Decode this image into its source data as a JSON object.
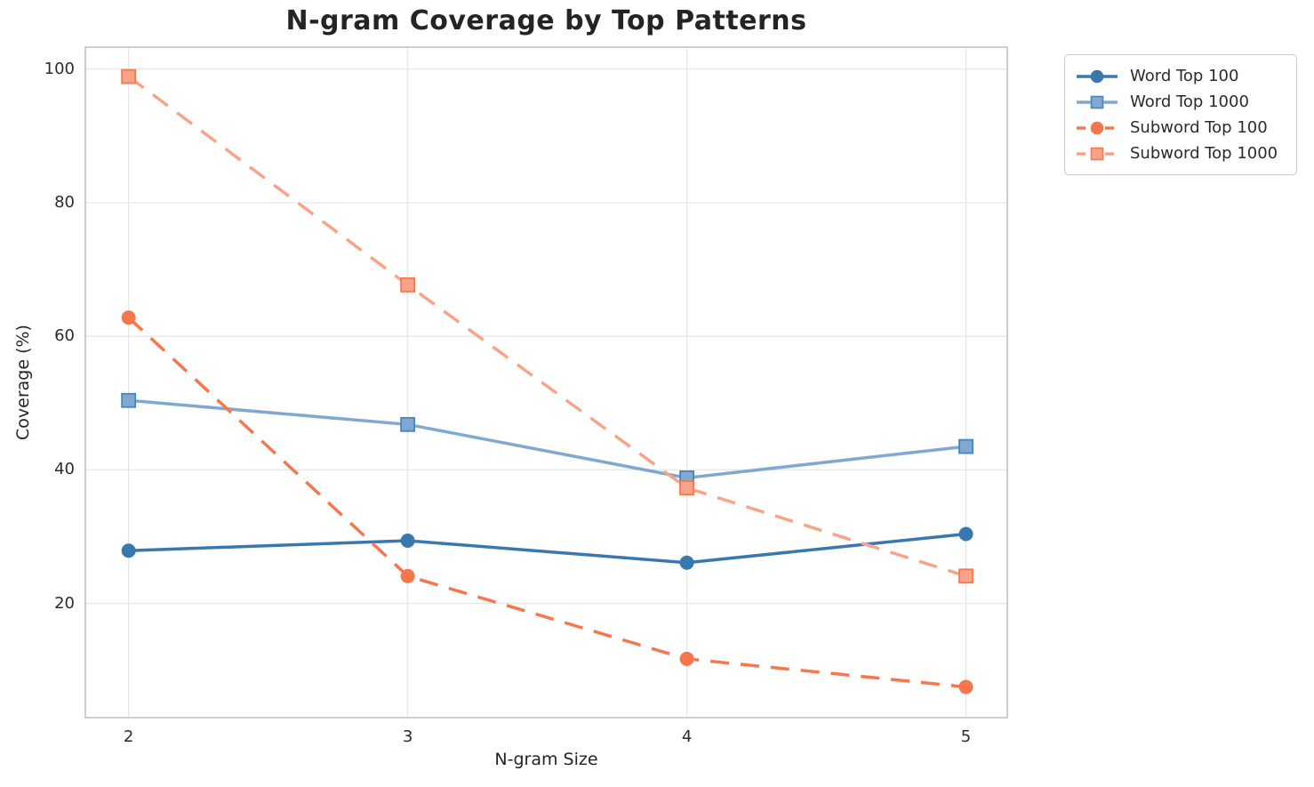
{
  "chart_data": {
    "type": "line",
    "title": "N-gram Coverage by Top Patterns",
    "xlabel": "N-gram Size",
    "ylabel": "Coverage (%)",
    "x": [
      2,
      3,
      4,
      5
    ],
    "x_tick_labels": [
      "2",
      "3",
      "4",
      "5"
    ],
    "y_ticks": [
      20,
      40,
      60,
      80,
      100
    ],
    "y_tick_labels": [
      "20",
      "40",
      "60",
      "80",
      "100"
    ],
    "xlim": [
      1.845,
      5.148
    ],
    "ylim": [
      2.9,
      103.3
    ],
    "grid": true,
    "legend_position": "outside-top-right",
    "series": [
      {
        "name": "Word Top 100",
        "values": [
          27.9,
          29.4,
          26.1,
          30.4
        ],
        "color": "#3878af",
        "edge_color": "#3878af",
        "marker": "circle",
        "line_style": "solid"
      },
      {
        "name": "Word Top 1000",
        "values": [
          50.4,
          46.8,
          38.8,
          43.5
        ],
        "color": "#7fa9d0",
        "edge_color": "#4a84b8",
        "marker": "square",
        "line_style": "solid"
      },
      {
        "name": "Subword Top 100",
        "values": [
          62.8,
          24.1,
          11.7,
          7.5
        ],
        "color": "#f8764c",
        "edge_color": "#f8764c",
        "marker": "circle",
        "line_style": "dashed"
      },
      {
        "name": "Subword Top 1000",
        "values": [
          98.9,
          67.7,
          37.3,
          24.1
        ],
        "color": "#f9a488",
        "edge_color": "#f8774e",
        "marker": "square",
        "line_style": "dashed"
      }
    ]
  }
}
